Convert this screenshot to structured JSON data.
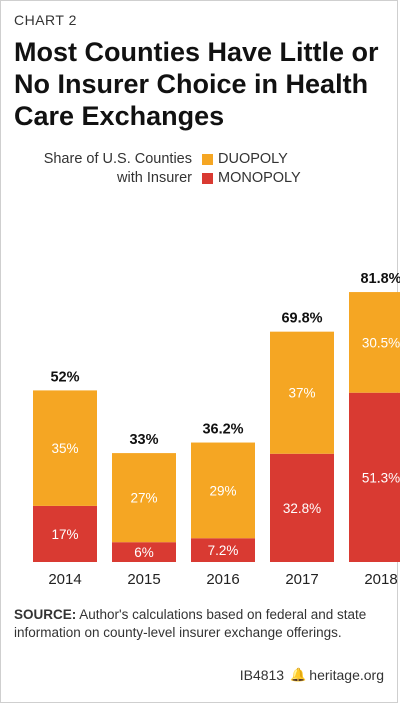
{
  "header": {
    "kicker": "CHART 2",
    "title": "Most Counties Have Little or No Insurer Choice in Health Care Exchanges"
  },
  "legend": {
    "title": "Share of U.S. Counties with Insurer",
    "items": [
      {
        "label": "DUOPOLY",
        "color": "#f5a623"
      },
      {
        "label": "MONOPOLY",
        "color": "#d93a32"
      }
    ]
  },
  "chart_data": {
    "type": "bar",
    "stacked": true,
    "categories": [
      "2014",
      "2015",
      "2016",
      "2017",
      "2018"
    ],
    "series": [
      {
        "name": "MONOPOLY",
        "values": [
          17,
          6,
          7.2,
          32.8,
          51.3
        ],
        "labels": [
          "17%",
          "6%",
          "7.2%",
          "32.8%",
          "51.3%"
        ],
        "color": "#d93a32"
      },
      {
        "name": "DUOPOLY",
        "values": [
          35,
          27,
          29,
          37,
          30.5
        ],
        "labels": [
          "35%",
          "27%",
          "29%",
          "37%",
          "30.5%"
        ],
        "color": "#f5a623"
      }
    ],
    "totals": [
      "52%",
      "33%",
      "36.2%",
      "69.8%",
      "81.8%"
    ],
    "ylim": [
      0,
      90
    ],
    "grid": false
  },
  "source": {
    "label": "SOURCE:",
    "text": " Author's calculations based on federal and state information on county-level insurer exchange offerings."
  },
  "footer": {
    "code": "IB4813",
    "site": "heritage.org"
  }
}
